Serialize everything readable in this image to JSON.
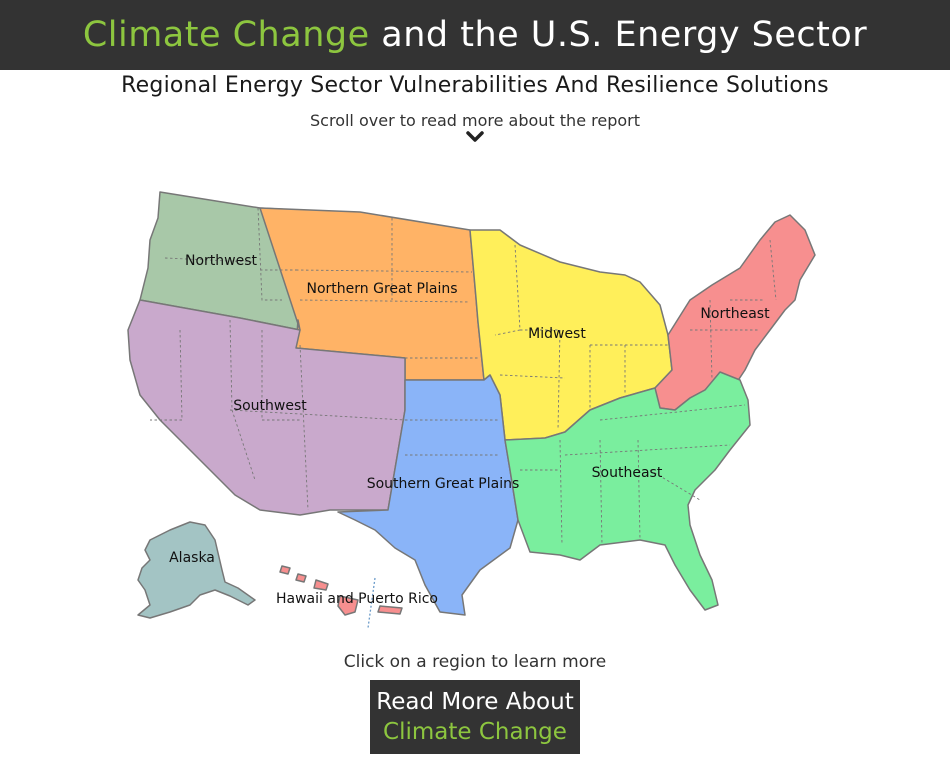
{
  "header": {
    "title_accent": "Climate Change",
    "title_rest": " and the U.S. Energy Sector"
  },
  "subtitle": "Regional Energy Sector Vulnerabilities And Resilience Solutions",
  "scroll_hint": "Scroll over to read more about the report",
  "click_hint": "Click on a region to learn more",
  "button": {
    "line1": "Read More About",
    "line2": "Climate Change"
  },
  "colors": {
    "banner": "#333333",
    "accent": "#8dc63f",
    "northwest": "#a8c8a8",
    "northern_great_plains": "#ffb366",
    "midwest": "#ffef5a",
    "northeast": "#f78f8f",
    "southwest": "#c9a9cc",
    "southern_great_plains": "#8ab4f8",
    "southeast": "#7aee9e",
    "alaska": "#a3c4c4",
    "hawaii_puerto_rico": "#f78f8f"
  },
  "regions": {
    "northwest": "Northwest",
    "northern_great_plains": "Northern Great Plains",
    "midwest": "Midwest",
    "northeast": "Northeast",
    "southwest": "Southwest",
    "southern_great_plains": "Southern Great Plains",
    "southeast": "Southeast",
    "alaska": "Alaska",
    "hawaii_puerto_rico": "Hawaii and Puerto Rico"
  }
}
